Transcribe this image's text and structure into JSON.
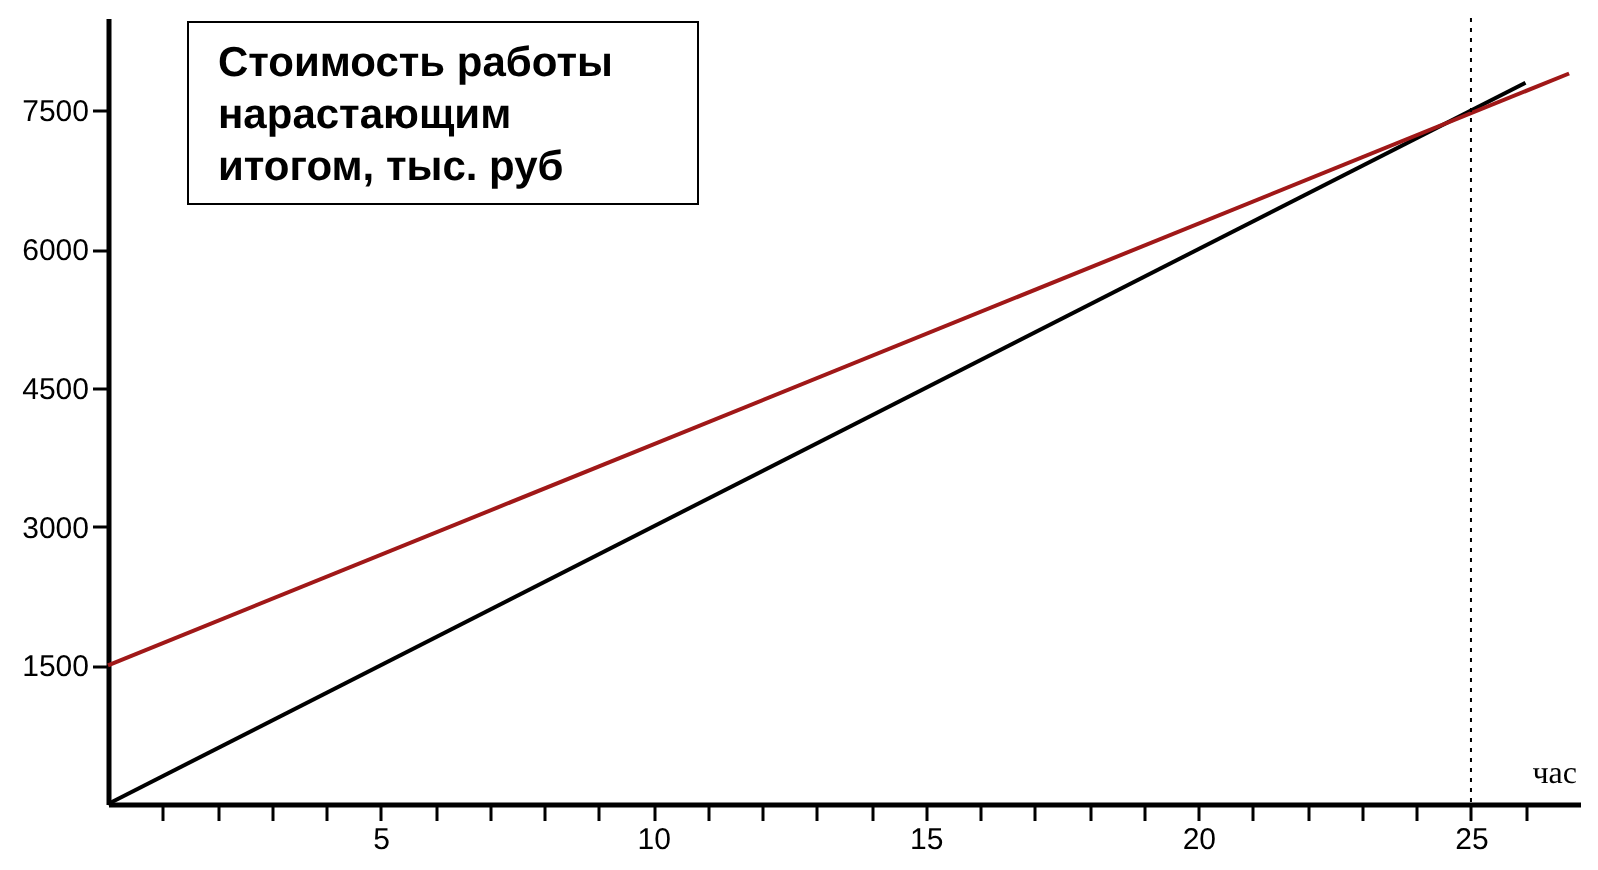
{
  "chart_data": {
    "type": "line",
    "ylabel": "Стоимость работы\nнарастающим\nитогом, тыс. руб",
    "xlabel": "час",
    "series": [
      {
        "color": "#000000",
        "x": [
          0,
          26
        ],
        "values": [
          0,
          7800
        ]
      },
      {
        "color": "#a01818",
        "x": [
          0,
          26.8
        ],
        "values": [
          1500,
          7900
        ]
      }
    ],
    "xlim": [
      0,
      27
    ],
    "ylim": [
      0,
      8500
    ],
    "xticks": [
      {
        "value": 1,
        "label": null
      },
      {
        "value": 2,
        "label": null
      },
      {
        "value": 3,
        "label": null
      },
      {
        "value": 4,
        "label": null
      },
      5,
      {
        "value": 6,
        "label": null
      },
      {
        "value": 7,
        "label": null
      },
      {
        "value": 8,
        "label": null
      },
      {
        "value": 9,
        "label": null
      },
      10,
      {
        "value": 11,
        "label": null
      },
      {
        "value": 12,
        "label": null
      },
      {
        "value": 13,
        "label": null
      },
      {
        "value": 14,
        "label": null
      },
      15,
      {
        "value": 16,
        "label": null
      },
      {
        "value": 17,
        "label": null
      },
      {
        "value": 18,
        "label": null
      },
      {
        "value": 19,
        "label": null
      },
      20,
      {
        "value": 21,
        "label": null
      },
      {
        "value": 22,
        "label": null
      },
      {
        "value": 23,
        "label": null
      },
      {
        "value": 24,
        "label": null
      },
      25,
      {
        "value": 26,
        "label": null
      }
    ],
    "yticks": [
      1500,
      3000,
      4500,
      6000,
      7500
    ],
    "ref_lines": [
      {
        "axis": "x",
        "value": 25,
        "line_style": "dotted",
        "color": "#000000"
      }
    ],
    "grid": false,
    "marker": "none",
    "line_style": "solid"
  }
}
